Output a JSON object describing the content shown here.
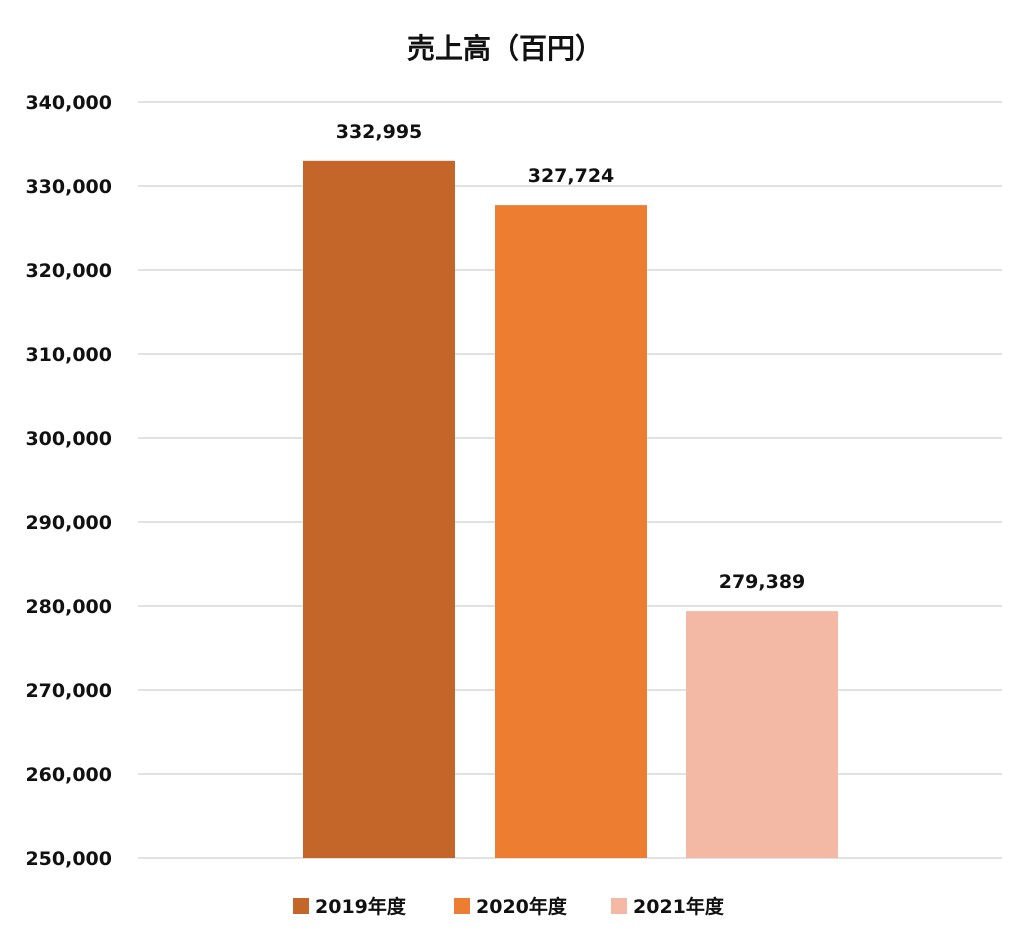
{
  "chart_data": {
    "type": "bar",
    "title": "売上高（百円）",
    "xlabel": "",
    "ylabel": "",
    "categories": [
      "2019年度",
      "2020年度",
      "2021年度"
    ],
    "values": [
      332995,
      327724,
      279389
    ],
    "data_labels": [
      "332,995",
      "327,724",
      "279,389"
    ],
    "colors": [
      "#c4652a",
      "#ed7d31",
      "#f4b9a5"
    ],
    "ylim": [
      250000,
      340000
    ],
    "yticks": [
      250000,
      260000,
      270000,
      280000,
      290000,
      300000,
      310000,
      320000,
      330000,
      340000
    ],
    "ytick_labels": [
      "250,000",
      "260,000",
      "270,000",
      "280,000",
      "290,000",
      "300,000",
      "310,000",
      "320,000",
      "330,000",
      "340,000"
    ],
    "grid": true,
    "legend": {
      "position": "bottom",
      "entries": [
        "2019年度",
        "2020年度",
        "2021年度"
      ]
    }
  }
}
